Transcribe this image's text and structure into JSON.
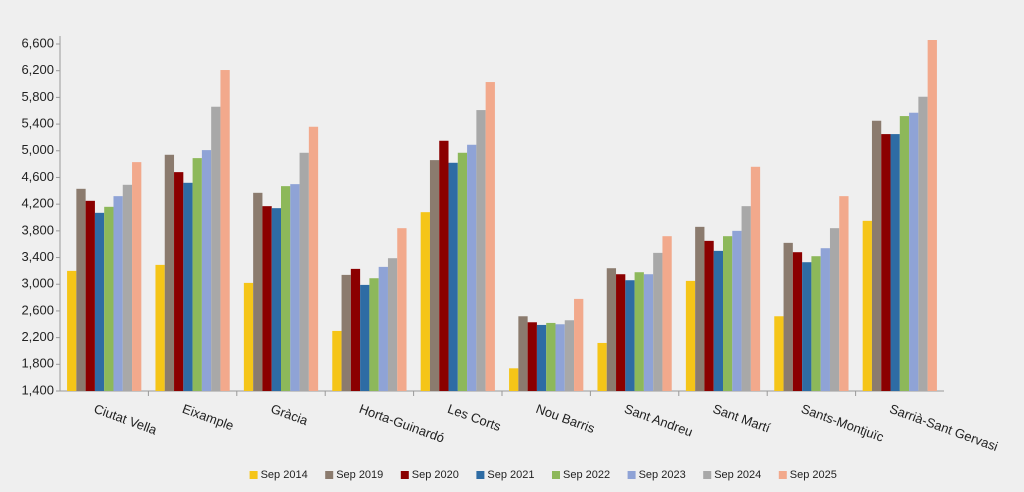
{
  "chart_data": {
    "type": "bar",
    "categories": [
      "Ciutat Vella",
      "Eixample",
      "Gràcia",
      "Horta-Guinardó",
      "Les Corts",
      "Nou Barris",
      "Sant Andreu",
      "Sant Martí",
      "Sants-Montjuïc",
      "Sarrià-Sant Gervasi"
    ],
    "series": [
      {
        "name": "Sep 2014",
        "color": "#f5c518",
        "values": [
          3200,
          3290,
          3020,
          2300,
          4080,
          1740,
          2120,
          3050,
          2520,
          3950
        ]
      },
      {
        "name": "Sep 2019",
        "color": "#8b7b6e",
        "values": [
          4430,
          4940,
          4370,
          3140,
          4860,
          2520,
          3240,
          3860,
          3620,
          5450
        ]
      },
      {
        "name": "Sep 2020",
        "color": "#8b0000",
        "values": [
          4250,
          4680,
          4170,
          3230,
          5150,
          2430,
          3150,
          3650,
          3480,
          5250
        ]
      },
      {
        "name": "Sep 2021",
        "color": "#2e6ca4",
        "values": [
          4070,
          4520,
          4140,
          2990,
          4820,
          2390,
          3060,
          3500,
          3330,
          5250
        ]
      },
      {
        "name": "Sep 2022",
        "color": "#8db85a",
        "values": [
          4160,
          4890,
          4470,
          3090,
          4970,
          2420,
          3180,
          3720,
          3420,
          5520
        ]
      },
      {
        "name": "Sep 2023",
        "color": "#8fa3d6",
        "values": [
          4320,
          5010,
          4500,
          3260,
          5090,
          2400,
          3150,
          3800,
          3540,
          5570
        ]
      },
      {
        "name": "Sep 2024",
        "color": "#a8a8a8",
        "values": [
          4490,
          5660,
          4970,
          3390,
          5610,
          2460,
          3470,
          4170,
          3840,
          5810
        ]
      },
      {
        "name": "Sep 2025",
        "color": "#f2a98c",
        "values": [
          4830,
          6210,
          5360,
          3840,
          6030,
          2780,
          3720,
          4760,
          4320,
          6660
        ]
      }
    ],
    "ylim": [
      1400,
      6720
    ],
    "yticks": [
      {
        "value": 1400,
        "label": "1,400"
      },
      {
        "value": 1800,
        "label": "1,800"
      },
      {
        "value": 2200,
        "label": "2,200"
      },
      {
        "value": 2600,
        "label": "2,600"
      },
      {
        "value": 3000,
        "label": "3,000"
      },
      {
        "value": 3400,
        "label": "3,400"
      },
      {
        "value": 3800,
        "label": "3,800"
      },
      {
        "value": 4200,
        "label": "4,200"
      },
      {
        "value": 4600,
        "label": "4,600"
      },
      {
        "value": 5000,
        "label": "5,000"
      },
      {
        "value": 5400,
        "label": "5,400"
      },
      {
        "value": 5800,
        "label": "5,800"
      },
      {
        "value": 6200,
        "label": "6,200"
      },
      {
        "value": 6600,
        "label": "6,600"
      }
    ],
    "legend": "bottom"
  }
}
